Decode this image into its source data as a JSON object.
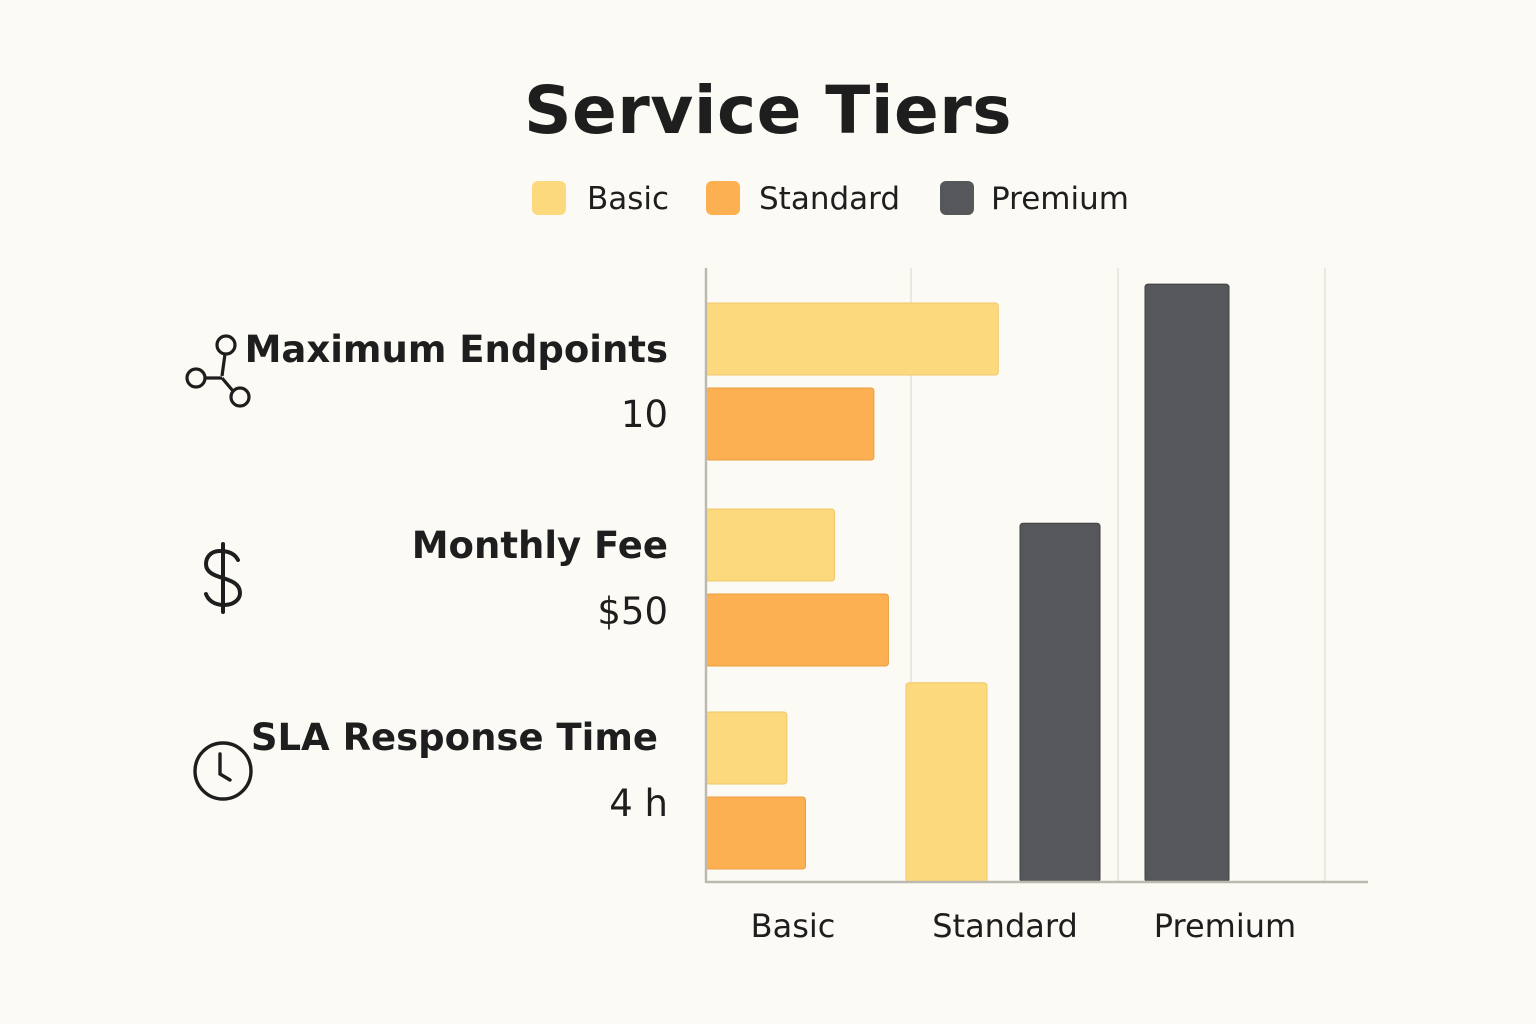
{
  "title": "Service Tiers",
  "legend": [
    {
      "label": "Basic",
      "color": "#fdd97e"
    },
    {
      "label": "Standard",
      "color": "#fcb052"
    },
    {
      "label": "Premium",
      "color": "#56575a"
    }
  ],
  "metrics": [
    {
      "label": "Maximum Endpoints",
      "value": "10",
      "icon": "network-nodes-icon"
    },
    {
      "label": "Monthly Fee",
      "value": "$50",
      "icon": "dollar-sign-icon"
    },
    {
      "label": "SLA Response Time",
      "value": "4 h",
      "icon": "clock-icon"
    }
  ],
  "chart_data": {
    "type": "bar",
    "title": "Service Tiers",
    "categories": [
      "Basic",
      "Standard",
      "Premium"
    ],
    "legend_position": "top",
    "grid": true,
    "horizontal_bars": [
      {
        "metric": "Maximum Endpoints",
        "series": "Basic",
        "value": 1.41
      },
      {
        "metric": "Maximum Endpoints",
        "series": "Standard",
        "value": 0.81
      },
      {
        "metric": "Monthly Fee",
        "series": "Basic",
        "value": 0.62
      },
      {
        "metric": "Monthly Fee",
        "series": "Standard",
        "value": 0.88
      },
      {
        "metric": "SLA Response Time",
        "series": "Basic",
        "value": 0.39
      },
      {
        "metric": "SLA Response Time",
        "series": "Standard",
        "value": 0.48
      }
    ],
    "vertical_bars": [
      {
        "category": "Standard",
        "series": "Basic",
        "value": 1.0
      },
      {
        "category": "Standard",
        "series": "Premium",
        "value": 1.8
      },
      {
        "category": "Premium",
        "series": "Premium",
        "value": 3.0
      }
    ],
    "xlim": [
      0,
      3
    ],
    "ylim": [
      0,
      3
    ]
  }
}
